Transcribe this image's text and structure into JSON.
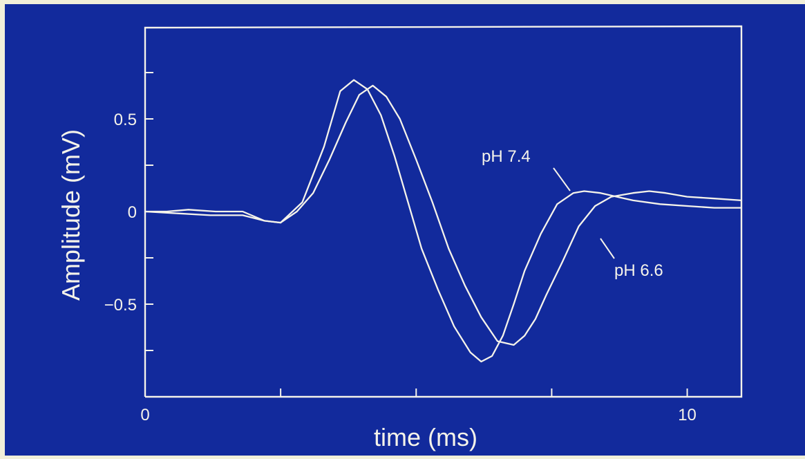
{
  "chart_data": {
    "type": "line",
    "title": "",
    "xlabel": "time (ms)",
    "ylabel": "Amplitude (mV)",
    "xlim": [
      0,
      11
    ],
    "ylim": [
      -1.0,
      1.0
    ],
    "x_ticks": [
      0,
      2.5,
      5,
      7.5,
      10
    ],
    "x_tick_labels": [
      "0",
      "",
      "",
      "",
      "10"
    ],
    "y_ticks": [
      -1.0,
      -0.75,
      -0.5,
      -0.25,
      0,
      0.25,
      0.5,
      0.75
    ],
    "y_tick_labels": [
      "",
      "",
      "−0.5",
      "",
      "0",
      "",
      "0.5",
      ""
    ],
    "grid": false,
    "series": [
      {
        "name": "pH 7.4",
        "x": [
          0,
          0.6,
          1.2,
          1.8,
          2.2,
          2.5,
          2.9,
          3.3,
          3.6,
          3.85,
          4.1,
          4.35,
          4.6,
          4.85,
          5.1,
          5.4,
          5.7,
          6.0,
          6.2,
          6.4,
          6.6,
          6.8,
          7.0,
          7.3,
          7.6,
          7.9,
          8.1,
          8.4,
          8.7,
          9.0,
          9.5,
          10.0,
          10.5,
          11.0
        ],
        "y": [
          0.0,
          -0.01,
          -0.02,
          -0.02,
          -0.05,
          -0.06,
          0.05,
          0.35,
          0.65,
          0.71,
          0.66,
          0.52,
          0.3,
          0.05,
          -0.2,
          -0.42,
          -0.62,
          -0.76,
          -0.81,
          -0.78,
          -0.67,
          -0.5,
          -0.32,
          -0.12,
          0.04,
          0.1,
          0.11,
          0.1,
          0.08,
          0.06,
          0.04,
          0.03,
          0.02,
          0.02
        ]
      },
      {
        "name": "pH 6.6",
        "x": [
          0,
          0.4,
          0.8,
          1.3,
          1.8,
          2.2,
          2.5,
          2.8,
          3.1,
          3.4,
          3.7,
          3.95,
          4.2,
          4.45,
          4.7,
          5.0,
          5.3,
          5.6,
          5.9,
          6.2,
          6.5,
          6.8,
          7.0,
          7.2,
          7.4,
          7.7,
          8.0,
          8.3,
          8.6,
          9.0,
          9.3,
          9.6,
          10.0,
          10.5,
          11.0
        ],
        "y": [
          0.0,
          0.0,
          0.01,
          0.0,
          0.0,
          -0.05,
          -0.06,
          0.0,
          0.1,
          0.28,
          0.48,
          0.63,
          0.68,
          0.62,
          0.5,
          0.28,
          0.05,
          -0.2,
          -0.4,
          -0.57,
          -0.7,
          -0.72,
          -0.67,
          -0.58,
          -0.45,
          -0.27,
          -0.08,
          0.03,
          0.08,
          0.1,
          0.11,
          0.1,
          0.08,
          0.07,
          0.06
        ]
      }
    ],
    "annotations": [
      {
        "text": "pH 7.4",
        "series": "pH 7.4"
      },
      {
        "text": "pH 6.6",
        "series": "pH 6.6"
      }
    ]
  }
}
